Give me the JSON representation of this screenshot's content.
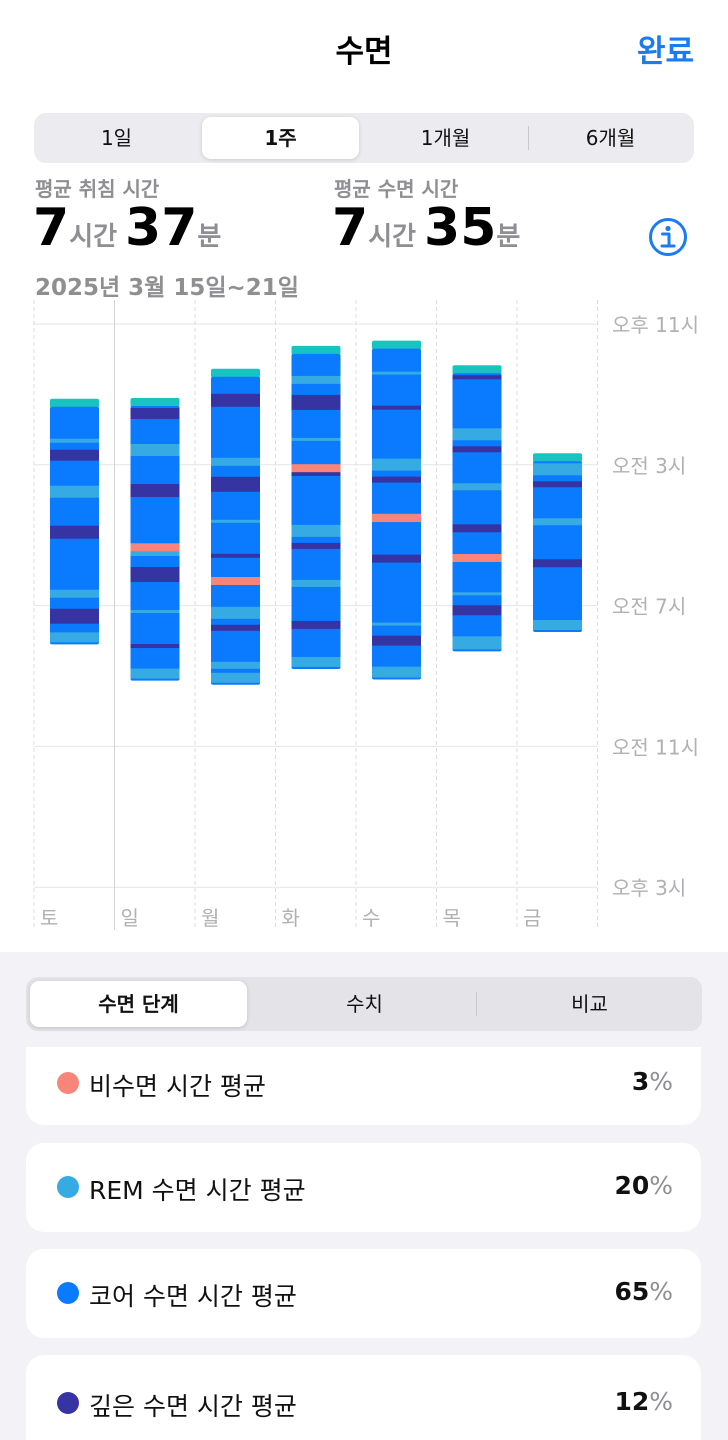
{
  "header": {
    "title": "수면",
    "done_label": "완료"
  },
  "range_tabs": [
    "1일",
    "1주",
    "1개월",
    "6개월"
  ],
  "stats": {
    "in_bed": {
      "label": "평균 취침 시간",
      "hours": "7",
      "hours_unit": "시간",
      "minutes": "37",
      "minutes_unit": "분"
    },
    "asleep": {
      "label": "평균 수면 시간",
      "hours": "7",
      "hours_unit": "시간",
      "minutes": "35",
      "minutes_unit": "분"
    },
    "date_range": "2025년 3월 15일~21일"
  },
  "colors": {
    "awake": "#f7857a",
    "rem": "#36aae2",
    "core": "#0a7aff",
    "deep": "#3634a3",
    "in_bed": "#19c4c0",
    "accent": "#1a7cf0"
  },
  "chart_data": {
    "type": "bar",
    "categories": [
      "토",
      "일",
      "월",
      "화",
      "수",
      "목",
      "금"
    ],
    "y_ticks": [
      "오후 11시",
      "오전 3시",
      "오전 7시",
      "오전 11시",
      "오후 3시"
    ],
    "y_range_hours_from_11pm": [
      0,
      16
    ],
    "series": [
      {
        "name": "토",
        "start": 2.35,
        "end": 9.1
      },
      {
        "name": "일",
        "start": 2.33,
        "end": 10.13
      },
      {
        "name": "월",
        "start": 1.5,
        "end": 10.25
      },
      {
        "name": "화",
        "start": 0.85,
        "end": 9.8
      },
      {
        "name": "수",
        "start": 0.7,
        "end": 10.1
      },
      {
        "name": "목",
        "start": 1.4,
        "end": 9.3
      },
      {
        "name": "금",
        "start": 3.9,
        "end": 8.75
      }
    ]
  },
  "breakdown_tabs": [
    "수면 단계",
    "수치",
    "비교"
  ],
  "breakdown": [
    {
      "label": "비수면 시간 평균",
      "value": "3",
      "unit": "%"
    },
    {
      "label": "REM 수면 시간 평균",
      "value": "20",
      "unit": "%"
    },
    {
      "label": "코어 수면 시간 평균",
      "value": "65",
      "unit": "%"
    },
    {
      "label": "깊은 수면 시간 평균",
      "value": "12",
      "unit": "%"
    }
  ]
}
